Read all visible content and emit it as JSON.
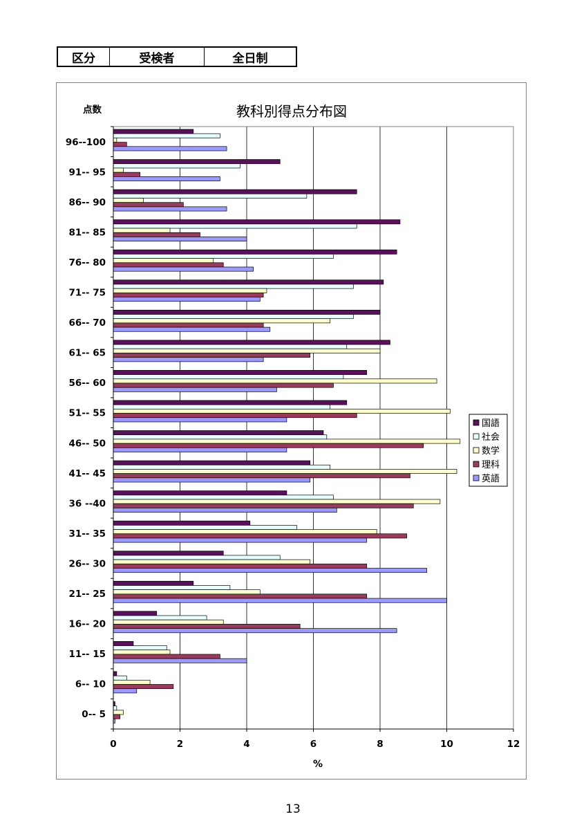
{
  "header": {
    "cells": [
      "区分",
      "受検者",
      "全日制"
    ]
  },
  "page_number": "13",
  "colors": {
    "国語": "#5c0f5c",
    "社会": "#e6ffff",
    "数学": "#ffffcc",
    "理科": "#9a3a5c",
    "英語": "#9999ff"
  },
  "chart_data": {
    "type": "bar",
    "orientation": "horizontal",
    "title": "教科別得点分布図",
    "ylabel": "点数",
    "xlabel": "%",
    "xlim": [
      0,
      12
    ],
    "xticks": [
      0,
      2,
      4,
      6,
      8,
      10,
      12
    ],
    "grid": true,
    "legend_position": "right",
    "categories": [
      "96--100",
      "91-- 95",
      "86-- 90",
      "81-- 85",
      "76-- 80",
      "71-- 75",
      "66-- 70",
      "61-- 65",
      "56-- 60",
      "51-- 55",
      "46-- 50",
      "41-- 45",
      "36 --40",
      "31-- 35",
      "26-- 30",
      "21-- 25",
      "16-- 20",
      "11-- 15",
      "6-- 10",
      "0-- 5"
    ],
    "series": [
      {
        "name": "国語",
        "values": [
          2.4,
          5.0,
          7.3,
          8.6,
          8.5,
          8.1,
          8.0,
          8.3,
          7.6,
          7.0,
          6.3,
          5.9,
          5.2,
          4.1,
          3.3,
          2.4,
          1.3,
          0.6,
          0.1,
          0.05
        ]
      },
      {
        "name": "社会",
        "values": [
          3.2,
          3.8,
          5.8,
          7.3,
          6.6,
          7.2,
          7.2,
          7.0,
          6.9,
          6.5,
          6.4,
          6.5,
          6.6,
          5.5,
          5.0,
          3.5,
          2.8,
          1.6,
          0.4,
          0.1
        ]
      },
      {
        "name": "数学",
        "values": [
          0.1,
          0.3,
          0.9,
          1.7,
          3.0,
          4.6,
          6.5,
          8.0,
          9.7,
          10.1,
          10.4,
          10.3,
          9.8,
          7.9,
          5.9,
          4.4,
          3.3,
          1.7,
          1.1,
          0.3
        ]
      },
      {
        "name": "理科",
        "values": [
          0.4,
          0.8,
          2.1,
          2.6,
          3.3,
          4.5,
          4.5,
          5.9,
          6.6,
          7.3,
          9.3,
          8.9,
          9.0,
          8.8,
          7.6,
          7.6,
          5.6,
          3.2,
          1.8,
          0.2
        ]
      },
      {
        "name": "英語",
        "values": [
          3.4,
          3.2,
          3.4,
          4.0,
          4.2,
          4.4,
          4.7,
          4.5,
          4.9,
          5.2,
          5.2,
          5.9,
          6.7,
          7.6,
          9.4,
          10.0,
          8.5,
          4.0,
          0.7,
          0.05
        ]
      }
    ]
  }
}
